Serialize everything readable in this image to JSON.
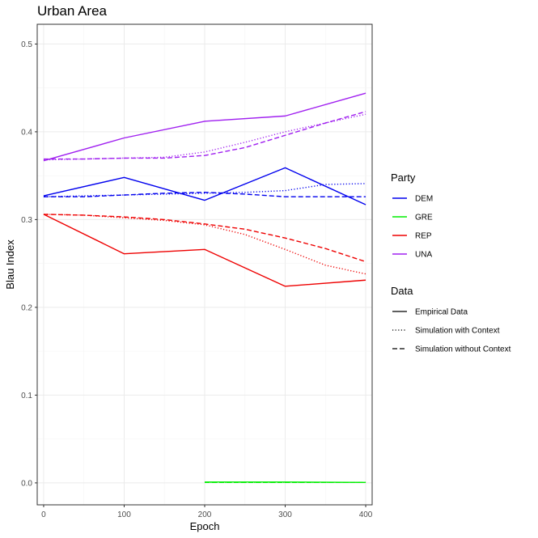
{
  "chart_data": {
    "type": "line",
    "title": "Urban Area",
    "xlabel": "Epoch",
    "ylabel": "Blau Index",
    "xlim": [
      -8,
      408
    ],
    "ylim": [
      -0.025,
      0.5225
    ],
    "x_ticks": [
      0,
      100,
      200,
      300,
      400
    ],
    "y_ticks": [
      0.0,
      0.1,
      0.2,
      0.3,
      0.4,
      0.5
    ],
    "x_tick_labels": [
      "0",
      "100",
      "200",
      "300",
      "400"
    ],
    "y_tick_labels": [
      "0.0",
      "0.1",
      "0.2",
      "0.3",
      "0.4",
      "0.5"
    ],
    "grid": true,
    "legend_position": "right",
    "legends": [
      {
        "title": "Party",
        "entries": [
          {
            "label": "DEM",
            "color": "#0000ee"
          },
          {
            "label": "GRE",
            "color": "#00ee00"
          },
          {
            "label": "REP",
            "color": "#ee0000"
          },
          {
            "label": "UNA",
            "color": "#a020f0"
          }
        ]
      },
      {
        "title": "Data",
        "entries": [
          {
            "label": "Empirical Data",
            "dash": "solid"
          },
          {
            "label": "Simulation with Context",
            "dash": "dotted"
          },
          {
            "label": "Simulation without Context",
            "dash": "dashed"
          }
        ]
      }
    ],
    "series": [
      {
        "party": "DEM",
        "data": "Empirical Data",
        "x": [
          0,
          100,
          200,
          300,
          400
        ],
        "y": [
          0.327,
          0.348,
          0.322,
          0.359,
          0.317
        ]
      },
      {
        "party": "REP",
        "data": "Empirical Data",
        "x": [
          0,
          100,
          200,
          300,
          400
        ],
        "y": [
          0.306,
          0.261,
          0.266,
          0.224,
          0.231
        ]
      },
      {
        "party": "UNA",
        "data": "Empirical Data",
        "x": [
          0,
          100,
          200,
          300,
          400
        ],
        "y": [
          0.367,
          0.393,
          0.412,
          0.418,
          0.444
        ]
      },
      {
        "party": "GRE",
        "data": "Empirical Data",
        "x": [
          200,
          300,
          400
        ],
        "y": [
          0.001,
          0.001,
          0.0005
        ]
      },
      {
        "party": "DEM",
        "data": "Simulation with Context",
        "x": [
          0,
          50,
          100,
          150,
          200,
          250,
          300,
          350,
          400
        ],
        "y": [
          0.326,
          0.327,
          0.328,
          0.329,
          0.33,
          0.331,
          0.333,
          0.34,
          0.341
        ]
      },
      {
        "party": "DEM",
        "data": "Simulation without Context",
        "x": [
          0,
          50,
          100,
          150,
          200,
          250,
          300,
          350,
          400
        ],
        "y": [
          0.326,
          0.326,
          0.328,
          0.33,
          0.331,
          0.329,
          0.326,
          0.326,
          0.326
        ]
      },
      {
        "party": "REP",
        "data": "Simulation with Context",
        "x": [
          0,
          50,
          100,
          150,
          200,
          250,
          300,
          350,
          400
        ],
        "y": [
          0.306,
          0.305,
          0.302,
          0.299,
          0.294,
          0.283,
          0.266,
          0.248,
          0.238
        ]
      },
      {
        "party": "REP",
        "data": "Simulation without Context",
        "x": [
          0,
          50,
          100,
          150,
          200,
          250,
          300,
          350,
          400
        ],
        "y": [
          0.306,
          0.305,
          0.303,
          0.3,
          0.295,
          0.289,
          0.279,
          0.267,
          0.252
        ]
      },
      {
        "party": "UNA",
        "data": "Simulation with Context",
        "x": [
          0,
          50,
          100,
          150,
          200,
          250,
          300,
          350,
          400
        ],
        "y": [
          0.368,
          0.369,
          0.37,
          0.371,
          0.377,
          0.388,
          0.4,
          0.41,
          0.42
        ]
      },
      {
        "party": "UNA",
        "data": "Simulation without Context",
        "x": [
          0,
          50,
          100,
          150,
          200,
          250,
          300,
          350,
          400
        ],
        "y": [
          0.369,
          0.369,
          0.37,
          0.37,
          0.373,
          0.382,
          0.396,
          0.41,
          0.423
        ]
      },
      {
        "party": "GRE",
        "data": "Simulation with Context",
        "x": [
          200,
          300,
          400
        ],
        "y": [
          0.0005,
          0.0005,
          0.0005
        ]
      },
      {
        "party": "GRE",
        "data": "Simulation without Context",
        "x": [
          200,
          300,
          400
        ],
        "y": [
          0.0005,
          0.0005,
          0.0005
        ]
      }
    ]
  }
}
